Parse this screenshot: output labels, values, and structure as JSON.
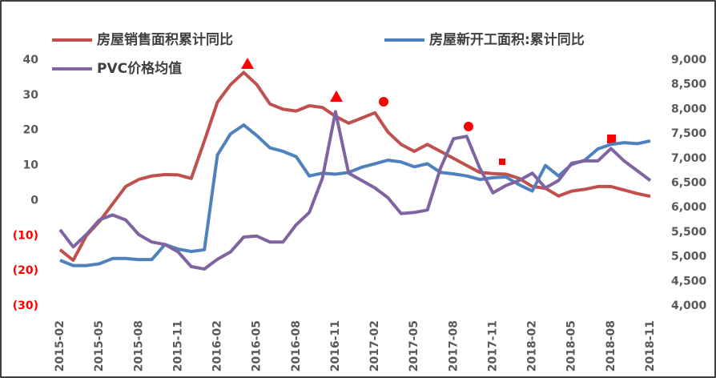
{
  "chart_data": {
    "type": "line",
    "categories": [
      "2015-02",
      null,
      null,
      "2015-05",
      null,
      null,
      "2015-08",
      null,
      null,
      "2015-11",
      null,
      null,
      "2016-02",
      null,
      null,
      "2016-05",
      null,
      null,
      "2016-08",
      null,
      null,
      "2016-11",
      null,
      null,
      "2017-02",
      null,
      null,
      "2017-05",
      null,
      null,
      "2017-08",
      null,
      null,
      "2017-11",
      null,
      null,
      "2018-02",
      null,
      null,
      "2018-05",
      null,
      null,
      "2018-08",
      null,
      null,
      "2018-11"
    ],
    "series": [
      {
        "name": "房屋销售面积累计同比",
        "color": "#c0504d",
        "values": [
          -14,
          -17,
          -10,
          -6,
          -1,
          4,
          6,
          7,
          7.4,
          7.3,
          6.3,
          17,
          28,
          33,
          36.5,
          33,
          27.5,
          26,
          25.5,
          27,
          26.5,
          24,
          22,
          23.5,
          25,
          19.5,
          16,
          14,
          16,
          14,
          12,
          10,
          8,
          7.7,
          7.5,
          6.3,
          4,
          3.5,
          1.3,
          2.7,
          3.2,
          4,
          4,
          3,
          2,
          1.2
        ]
      },
      {
        "name": "房屋新开工面积:累计同比",
        "color": "#4f81bd",
        "values": [
          -17,
          -18.5,
          -18.5,
          -18,
          -16.5,
          -16.5,
          -16.8,
          -16.8,
          -12.5,
          -13.8,
          -14.5,
          -14,
          13,
          19,
          21.5,
          18.5,
          15,
          14,
          12.5,
          7,
          7.8,
          7.5,
          8,
          9.5,
          10.5,
          11.5,
          11,
          9.6,
          10.5,
          8,
          7.6,
          7,
          6,
          6.5,
          6.7,
          4.5,
          2.7,
          10,
          7,
          10.3,
          11.5,
          14.7,
          16,
          16.5,
          16.2,
          17
        ]
      },
      {
        "name": "PVC价格均值",
        "color": "#8064a2",
        "axis": "y2",
        "values": [
          5550,
          5200,
          5450,
          5750,
          5850,
          5750,
          5450,
          5300,
          5250,
          5100,
          4800,
          4750,
          4950,
          5100,
          5400,
          5420,
          5300,
          5300,
          5650,
          5900,
          6600,
          7950,
          6700,
          6550,
          6400,
          6200,
          5880,
          5900,
          5950,
          6800,
          7400,
          7450,
          6800,
          6300,
          6450,
          6550,
          6700,
          6400,
          6550,
          6900,
          6950,
          6950,
          7200,
          6950,
          6750,
          6550
        ]
      }
    ],
    "ylim": [
      -30,
      40
    ],
    "yticks": [
      40,
      30,
      20,
      10,
      0,
      {
        "value": -10,
        "label": "(10)"
      },
      {
        "value": -20,
        "label": "(20)"
      },
      {
        "value": -30,
        "label": "(30)"
      }
    ],
    "y2lim": [
      4000,
      9000
    ],
    "y2ticks": [
      {
        "value": 9000,
        "label": "9,000"
      },
      {
        "value": 8500,
        "label": "8,500"
      },
      {
        "value": 8000,
        "label": "8,000"
      },
      {
        "value": 7500,
        "label": "7,500"
      },
      {
        "value": 7000,
        "label": "7,000"
      },
      {
        "value": 6500,
        "label": "6,500"
      },
      {
        "value": 6000,
        "label": "6,000"
      },
      {
        "value": 5500,
        "label": "5,500"
      },
      {
        "value": 5000,
        "label": "5,000"
      },
      {
        "value": 4500,
        "label": "4,500"
      },
      {
        "value": 4000,
        "label": "4,000"
      }
    ],
    "legend": "top"
  }
}
